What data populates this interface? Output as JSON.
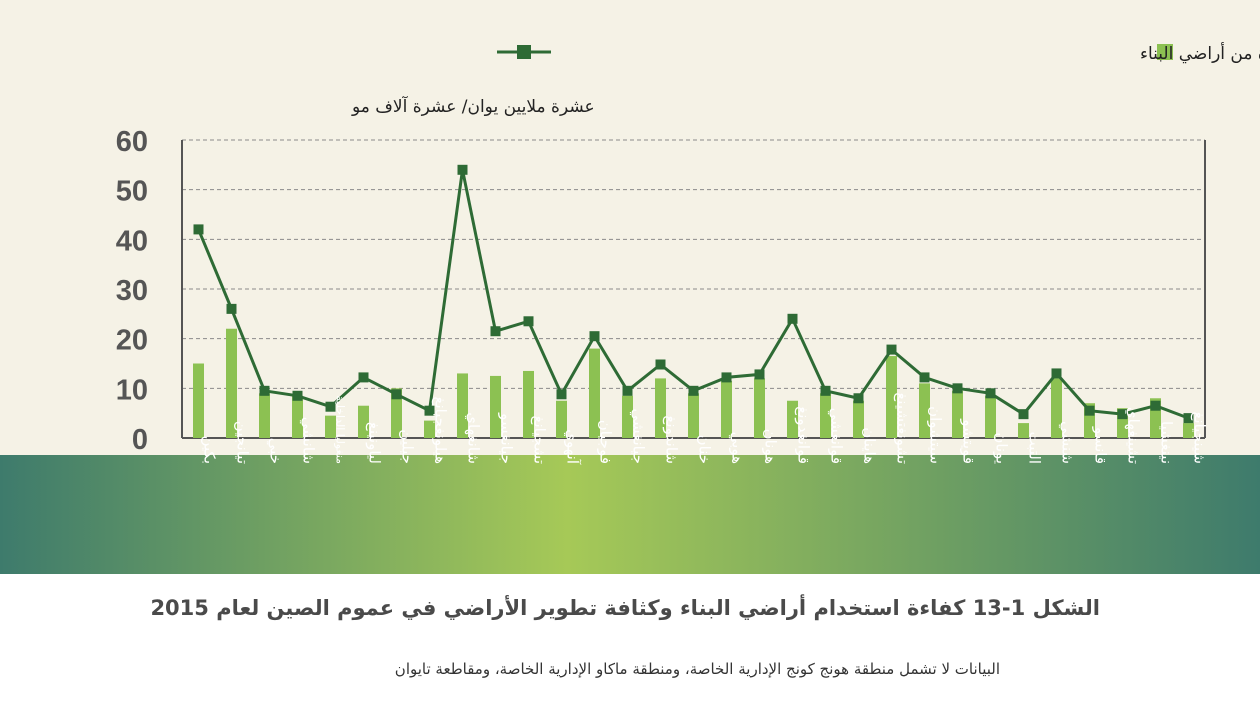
{
  "caption": {
    "title": "الشكل 1-13 كفاءة استخدام أراضي البناء وكثافة تطوير الأراضي في عموم الصين لعام 2015",
    "note": "البيانات لا تشمل منطقة هونج كونج الإدارية الخاصة، ومنطقة ماكاو الإدارية الخاصة، ومقاطعة تايوان"
  },
  "chart_data": {
    "type": "bar",
    "ylabel": "عشرة ملايين يوان/ عشرة آلاف مو",
    "ylim": [
      0,
      60
    ],
    "yticks": [
      0,
      10,
      20,
      30,
      40,
      50,
      60
    ],
    "grid": true,
    "legend_position": "top",
    "categories": [
      "بكين",
      "تيانجين",
      "خبي",
      "شانشي",
      "منغوليا الداخلية",
      "لياونينغ",
      "جيلين",
      "هيلونغجيانغ",
      "شانغهاي",
      "جيانغسو",
      "تشجيانغ",
      "آنهوي",
      "فوجيان",
      "جيانغشي",
      "شاندونغ",
      "خنان",
      "هوبي",
      "هونان",
      "قوانغدونغ",
      "قوانغشي",
      "هاينان",
      "تشونغتشينغ",
      "سيتشوان",
      "قويتشو",
      "يونان",
      "التبت",
      "شنشي",
      "قانسو",
      "تشينغهاي",
      "نينغشيا",
      "شينجيانغ"
    ],
    "series": [
      {
        "name": "الاستثمار في الأصول الثابتة لكل وحدة من أراضي البناء",
        "type": "bar",
        "color": "#8cc152",
        "values": [
          15,
          22,
          9,
          8.5,
          4.5,
          6.5,
          10,
          3.5,
          13,
          12.5,
          13.5,
          7.5,
          18,
          8.5,
          12,
          9,
          11.5,
          12,
          7.5,
          9,
          7.5,
          16.5,
          11,
          9.5,
          8.5,
          3,
          12,
          7,
          6,
          8,
          3
        ]
      },
      {
        "name": "",
        "type": "line",
        "color": "#2e6b35",
        "values": [
          42,
          26,
          9.5,
          8.5,
          6.3,
          12.2,
          8.8,
          5.5,
          54,
          21.5,
          23.5,
          8.8,
          20.5,
          9.5,
          14.8,
          9.5,
          12.2,
          12.8,
          24,
          9.5,
          8,
          17.8,
          12.2,
          10,
          9,
          4.8,
          13,
          5.5,
          4.8,
          6.5,
          4
        ]
      }
    ]
  },
  "style": {
    "plot_background": "#f5f2e6",
    "band_colors": [
      "#3e7b6c",
      "#a6c957",
      "#3e7b6c"
    ],
    "axis_color": "#555555",
    "grid_color": "#8a8a8a"
  }
}
